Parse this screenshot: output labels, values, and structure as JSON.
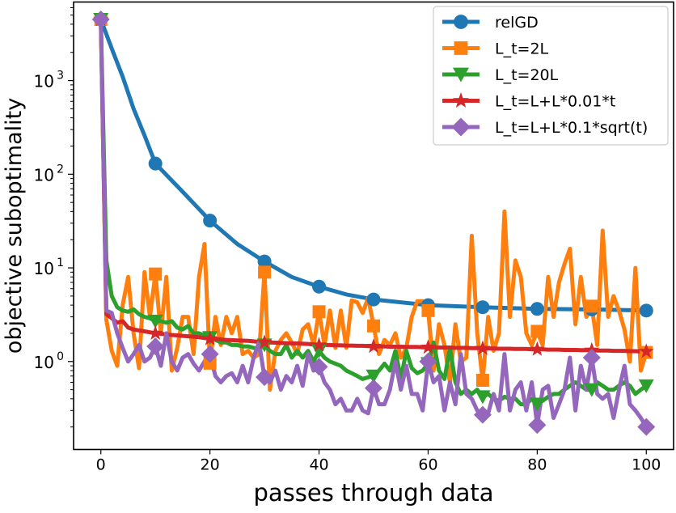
{
  "chart_data": {
    "type": "line",
    "title": "",
    "xlabel": "passes through data",
    "ylabel": "objective suboptimality",
    "xlim": [
      -5,
      105
    ],
    "ylim": [
      0.115,
      6900
    ],
    "yscale": "log",
    "xticks": [
      0,
      20,
      40,
      60,
      80,
      100
    ],
    "xtick_labels": [
      "0",
      "20",
      "40",
      "60",
      "80",
      "100"
    ],
    "yticks": [
      1,
      10,
      100,
      1000
    ],
    "ytick_labels": [
      {
        "base": "10",
        "exp": "0"
      },
      {
        "base": "10",
        "exp": "1"
      },
      {
        "base": "10",
        "exp": "2"
      },
      {
        "base": "10",
        "exp": "3"
      }
    ],
    "grid": false,
    "legend_position": "top-right",
    "marker_every": 10,
    "series": [
      {
        "name": "relGD",
        "color": "#1f77b4",
        "marker": "circle",
        "x": [
          0,
          2,
          4,
          6,
          8,
          10,
          15,
          20,
          25,
          30,
          35,
          40,
          45,
          50,
          60,
          70,
          80,
          90,
          100
        ],
        "y": [
          4500,
          2200,
          1100,
          500,
          260,
          130,
          65,
          32,
          18,
          11.7,
          8,
          6.3,
          5.2,
          4.6,
          4.0,
          3.8,
          3.65,
          3.6,
          3.5
        ]
      },
      {
        "name": "L_t=2L",
        "color": "#ff7f0e",
        "marker": "square",
        "y": [
          4500,
          2.8,
          1.3,
          0.9,
          4,
          8,
          2,
          0.85,
          9,
          3,
          8.6,
          2,
          8,
          0.8,
          1.4,
          3,
          3,
          1.2,
          8,
          18,
          0.96,
          3,
          1.5,
          3,
          2,
          3,
          1.2,
          1.3,
          1.1,
          1.2,
          9,
          0.5,
          1.3,
          1.7,
          2,
          1.6,
          1.2,
          2.2,
          2.5,
          1.5,
          3.4,
          1.5,
          3.5,
          1.4,
          3.5,
          1.4,
          4.5,
          4.3,
          3.3,
          4.8,
          2.4,
          1.2,
          1.7,
          1.5,
          2,
          1.1,
          1.4,
          3,
          4.4,
          4.4,
          3.5,
          0.8,
          2.5,
          1.5,
          0.6,
          2.5,
          1,
          1.1,
          22,
          2,
          0.63,
          3,
          1.3,
          2,
          40,
          3,
          12,
          8,
          2,
          1.5,
          2.1,
          1.5,
          8,
          3,
          7,
          11,
          16,
          2.5,
          8,
          3,
          3.9,
          1.5,
          25,
          3,
          5,
          3.5,
          2.2,
          1,
          10,
          0.8,
          1.25
        ]
      },
      {
        "name": "L_t=20L",
        "color": "#2ca02c",
        "marker": "triangle-down",
        "y": [
          4500,
          12,
          5,
          3.8,
          3.5,
          3.4,
          3.6,
          3.2,
          3,
          2.9,
          2.7,
          2.7,
          2.6,
          2.7,
          2.3,
          2.2,
          2.4,
          2,
          2,
          1.9,
          1.8,
          1.7,
          1.6,
          1.6,
          1.5,
          1.5,
          1.45,
          1.45,
          1.4,
          1.35,
          1.5,
          1.3,
          1.2,
          1.2,
          1.5,
          1.1,
          1.3,
          1.1,
          1.3,
          1,
          1.3,
          1.1,
          1,
          0.95,
          0.9,
          0.8,
          0.75,
          0.7,
          0.65,
          0.68,
          0.7,
          0.8,
          0.95,
          0.8,
          1.3,
          0.65,
          1.3,
          0.85,
          0.75,
          0.8,
          0.95,
          1.6,
          0.8,
          0.65,
          1.4,
          0.6,
          0.45,
          0.5,
          0.45,
          0.5,
          0.42,
          0.45,
          0.4,
          0.38,
          0.42,
          0.4,
          0.4,
          0.35,
          0.35,
          0.4,
          0.35,
          0.38,
          0.42,
          0.45,
          0.45,
          0.5,
          0.55,
          0.6,
          0.55,
          0.5,
          0.5,
          0.6,
          0.55,
          0.5,
          0.5,
          0.55,
          0.6,
          0.55,
          0.45,
          0.5,
          0.55
        ]
      },
      {
        "name": "L_t=L+L*0.01*t",
        "color": "#d62728",
        "marker": "star",
        "y": [
          4500,
          3.2,
          2.9,
          2.6,
          2.7,
          2.3,
          2.2,
          2.15,
          2.1,
          2.05,
          2.0,
          1.98,
          1.95,
          1.92,
          1.9,
          1.88,
          1.86,
          1.84,
          1.82,
          1.78,
          1.75,
          1.74,
          1.72,
          1.7,
          1.69,
          1.68,
          1.67,
          1.66,
          1.64,
          1.62,
          1.6,
          1.6,
          1.59,
          1.58,
          1.57,
          1.56,
          1.56,
          1.55,
          1.54,
          1.52,
          1.5,
          1.5,
          1.5,
          1.49,
          1.49,
          1.48,
          1.48,
          1.47,
          1.47,
          1.46,
          1.45,
          1.45,
          1.45,
          1.44,
          1.44,
          1.44,
          1.43,
          1.43,
          1.43,
          1.42,
          1.42,
          1.42,
          1.41,
          1.41,
          1.41,
          1.4,
          1.4,
          1.4,
          1.39,
          1.39,
          1.38,
          1.38,
          1.38,
          1.37,
          1.37,
          1.37,
          1.36,
          1.36,
          1.36,
          1.35,
          1.35,
          1.35,
          1.34,
          1.34,
          1.34,
          1.33,
          1.33,
          1.33,
          1.32,
          1.32,
          1.32,
          1.31,
          1.31,
          1.31,
          1.3,
          1.3,
          1.3,
          1.29,
          1.29,
          1.28,
          1.28
        ]
      },
      {
        "name": "L_t=L+L*0.1*sqrt(t)",
        "color": "#9467bd",
        "marker": "diamond",
        "y": [
          4500,
          3.5,
          3.3,
          2,
          1.4,
          1,
          1.2,
          1.5,
          1,
          1.1,
          1.45,
          0.9,
          2,
          1,
          0.8,
          1.1,
          1.2,
          0.95,
          0.8,
          1,
          1.2,
          0.7,
          0.6,
          0.7,
          0.75,
          0.6,
          0.9,
          0.6,
          1.1,
          1.6,
          0.68,
          0.6,
          0.8,
          0.5,
          0.7,
          0.6,
          0.9,
          0.55,
          1.2,
          0.8,
          0.88,
          0.6,
          0.5,
          0.35,
          0.4,
          0.3,
          0.3,
          0.4,
          0.3,
          0.28,
          0.52,
          0.35,
          0.35,
          0.5,
          1,
          0.5,
          0.9,
          0.45,
          0.45,
          0.3,
          1,
          0.6,
          0.7,
          0.3,
          0.6,
          0.35,
          1.2,
          0.45,
          0.4,
          0.3,
          0.27,
          0.28,
          0.45,
          0.3,
          1.2,
          0.3,
          0.5,
          0.6,
          0.3,
          0.6,
          0.21,
          0.5,
          0.55,
          0.25,
          0.35,
          0.5,
          1.1,
          0.3,
          0.9,
          0.5,
          1.1,
          0.45,
          0.4,
          0.45,
          0.25,
          0.5,
          0.9,
          0.35,
          0.3,
          0.25,
          0.2
        ]
      }
    ]
  }
}
